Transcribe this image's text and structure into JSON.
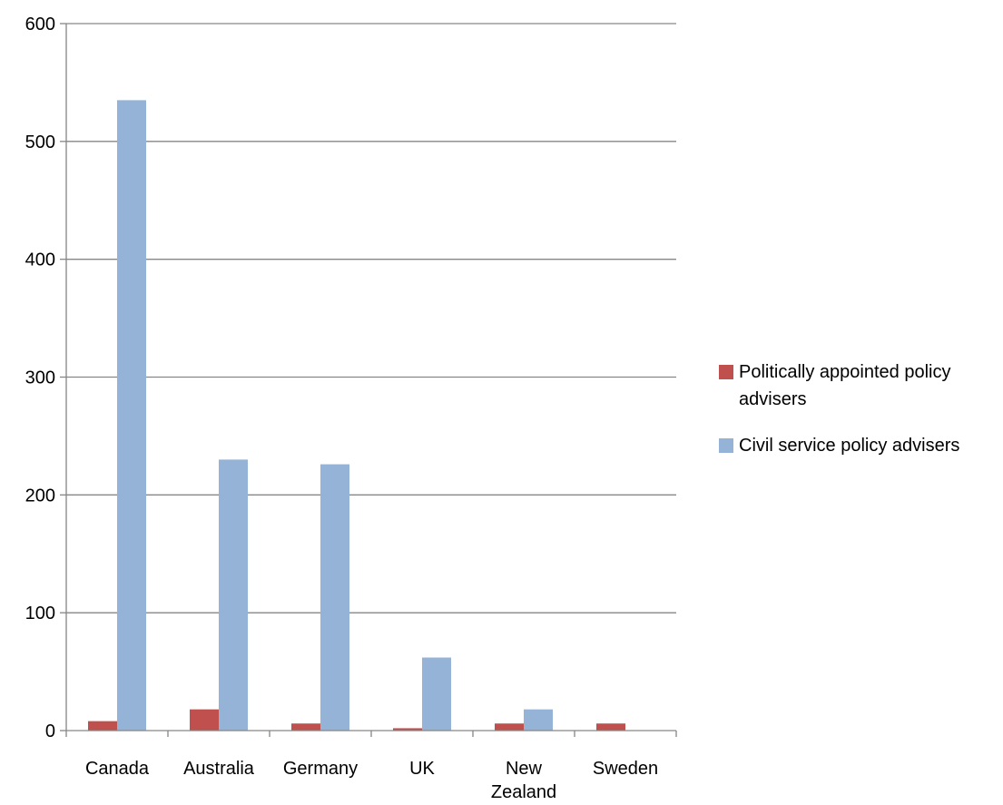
{
  "chart_data": {
    "type": "bar",
    "title": "",
    "xlabel": "",
    "ylabel": "",
    "ylim": [
      0,
      600
    ],
    "yticks": [
      0,
      100,
      200,
      300,
      400,
      500,
      600
    ],
    "grid": true,
    "legend_position": "right",
    "categories": [
      "Canada",
      "Australia",
      "Germany",
      "UK",
      "New Zealand",
      "Sweden"
    ],
    "category_lines": [
      [
        "Canada"
      ],
      [
        "Australia"
      ],
      [
        "Germany"
      ],
      [
        "UK"
      ],
      [
        "New",
        "Zealand"
      ],
      [
        "Sweden"
      ]
    ],
    "series": [
      {
        "name": "Politically appointed policy advisers",
        "name_lines": [
          "Politically appointed policy",
          "advisers"
        ],
        "color": "#c0504d",
        "values": [
          8,
          18,
          6,
          2,
          6,
          6
        ]
      },
      {
        "name": "Civil service policy advisers",
        "name_lines": [
          "Civil service policy advisers"
        ],
        "color": "#95b3d7",
        "values": [
          535,
          230,
          226,
          62,
          18,
          0
        ]
      }
    ]
  }
}
